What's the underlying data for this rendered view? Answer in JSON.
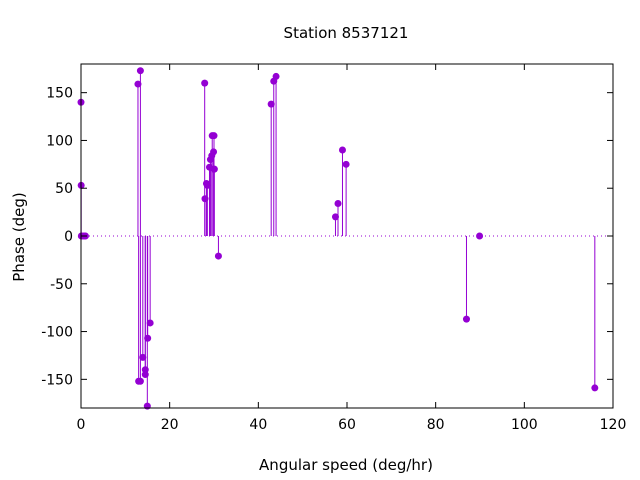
{
  "chart_data": {
    "type": "scatter",
    "style": "impulses-with-points",
    "title": "Station 8537121",
    "xlabel": "Angular speed (deg/hr)",
    "ylabel": "Phase (deg)",
    "xlim": [
      0,
      120
    ],
    "ylim": [
      -180,
      180
    ],
    "xticks": [
      0,
      20,
      40,
      60,
      80,
      100,
      120
    ],
    "yticks": [
      -150,
      -100,
      -50,
      0,
      50,
      100,
      150
    ],
    "xtick_labels": [
      "0",
      "20",
      "40",
      "60",
      "80",
      "100",
      "120"
    ],
    "ytick_labels": [
      "-150",
      "-100",
      "-50",
      "0",
      "50",
      "100",
      "150"
    ],
    "zero_line": "dotted",
    "grid": false,
    "legend": "none",
    "color": "#9400d3",
    "series": [
      {
        "points": [
          [
            0.0,
            140
          ],
          [
            0.04,
            53
          ],
          [
            0.08,
            0
          ],
          [
            0.5,
            0
          ],
          [
            0.8,
            0
          ],
          [
            1.0,
            0
          ],
          [
            12.85,
            159
          ],
          [
            13.4,
            173
          ],
          [
            13.0,
            -152
          ],
          [
            13.4,
            -152
          ],
          [
            13.94,
            -127
          ],
          [
            14.5,
            -140
          ],
          [
            14.5,
            -145
          ],
          [
            14.96,
            -178
          ],
          [
            15.04,
            -107
          ],
          [
            15.6,
            -91
          ],
          [
            27.9,
            160
          ],
          [
            27.97,
            39
          ],
          [
            28.3,
            55
          ],
          [
            28.5,
            53
          ],
          [
            28.98,
            72
          ],
          [
            29.2,
            80
          ],
          [
            29.5,
            84
          ],
          [
            29.6,
            105
          ],
          [
            30.0,
            105
          ],
          [
            29.9,
            88
          ],
          [
            30.0,
            70
          ],
          [
            30.08,
            70
          ],
          [
            31.0,
            -21
          ],
          [
            42.9,
            138
          ],
          [
            43.48,
            162
          ],
          [
            44.0,
            167
          ],
          [
            57.4,
            20
          ],
          [
            57.97,
            34
          ],
          [
            58.98,
            90
          ],
          [
            59.8,
            75
          ],
          [
            86.95,
            -87
          ],
          [
            89.9,
            0
          ],
          [
            115.9,
            -159
          ]
        ]
      }
    ]
  }
}
